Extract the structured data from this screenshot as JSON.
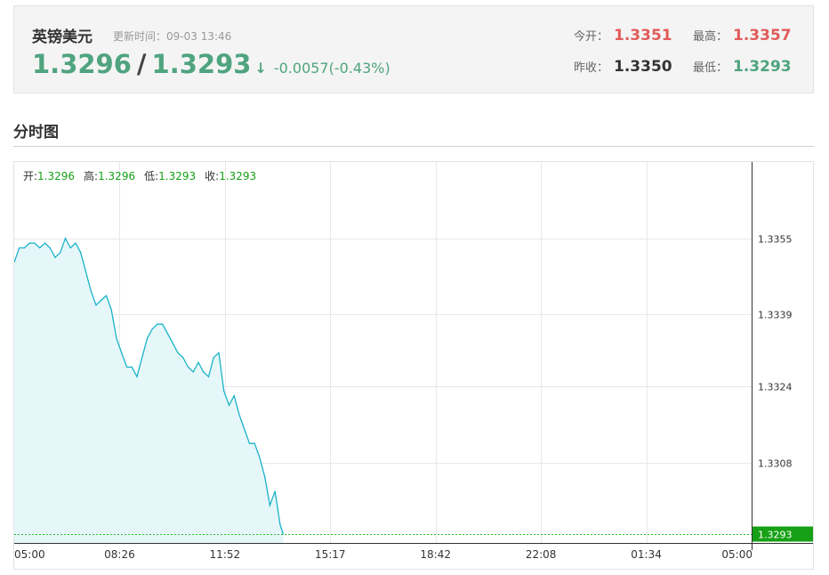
{
  "quote": {
    "pair_name": "英镑美元",
    "update_label": "更新时间：",
    "update_time": "09-03 13:46",
    "bid": "1.3296",
    "separator": "/",
    "ask": "1.3293",
    "direction_arrow": "↓",
    "change": "-0.0057(-0.43%)",
    "open_label": "今开：",
    "open": "1.3351",
    "high_label": "最高：",
    "high": "1.3357",
    "prev_close_label": "昨收：",
    "prev_close": "1.3350",
    "low_label": "最低：",
    "low": "1.3293"
  },
  "colors": {
    "up": "#e25b5b",
    "down": "#4fa47f",
    "line": "#1ab3c8",
    "area": "#e6f7f9",
    "grid": "#e8e8e8",
    "current_tag": "#16a016",
    "current_line": "#21c421"
  },
  "section": {
    "title": "分时图"
  },
  "chart_data": {
    "type": "area",
    "ohlc_labels": {
      "open_label": "开:",
      "open": "1.3296",
      "high_label": "高:",
      "high": "1.3296",
      "low_label": "低:",
      "low": "1.3293",
      "close_label": "收:",
      "close": "1.3293"
    },
    "x_ticks": [
      "05:00",
      "08:26",
      "11:52",
      "15:17",
      "18:42",
      "22:08",
      "01:34",
      "05:00"
    ],
    "y_ticks": [
      "1.3355",
      "1.3339",
      "1.3324",
      "1.3308"
    ],
    "ylim": [
      1.3293,
      1.3371
    ],
    "current_value": "1.3293",
    "x": [
      "05:00",
      "05:10",
      "05:20",
      "05:30",
      "05:40",
      "05:50",
      "06:00",
      "06:10",
      "06:20",
      "06:30",
      "06:40",
      "06:50",
      "07:00",
      "07:10",
      "07:20",
      "07:30",
      "07:40",
      "07:50",
      "08:00",
      "08:10",
      "08:20",
      "08:30",
      "08:40",
      "08:50",
      "09:00",
      "09:10",
      "09:20",
      "09:30",
      "09:40",
      "09:50",
      "10:00",
      "10:10",
      "10:20",
      "10:30",
      "10:40",
      "10:50",
      "11:00",
      "11:10",
      "11:20",
      "11:30",
      "11:40",
      "11:50",
      "12:00",
      "12:10",
      "12:20",
      "12:30",
      "12:40",
      "12:50",
      "13:00",
      "13:10",
      "13:20",
      "13:30",
      "13:40",
      "13:46"
    ],
    "values": [
      1.335,
      1.3353,
      1.3353,
      1.3354,
      1.3354,
      1.3353,
      1.3354,
      1.3353,
      1.3351,
      1.3352,
      1.3355,
      1.3353,
      1.3354,
      1.3352,
      1.3348,
      1.3344,
      1.3341,
      1.3342,
      1.3343,
      1.334,
      1.3334,
      1.3331,
      1.3328,
      1.3328,
      1.3326,
      1.333,
      1.3334,
      1.3336,
      1.3337,
      1.3337,
      1.3335,
      1.3333,
      1.3331,
      1.333,
      1.3328,
      1.3327,
      1.3329,
      1.3327,
      1.3326,
      1.333,
      1.3331,
      1.3323,
      1.332,
      1.3322,
      1.3318,
      1.3315,
      1.3312,
      1.3312,
      1.3309,
      1.3305,
      1.3299,
      1.3302,
      1.3295,
      1.3293
    ]
  }
}
